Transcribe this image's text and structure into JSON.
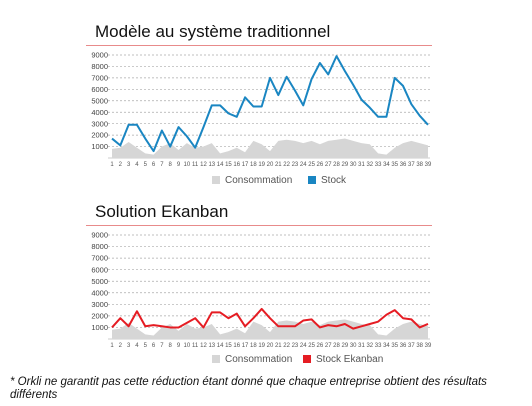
{
  "colors": {
    "stock": "#1a86c2",
    "ekanban": "#e51c23",
    "consommation": "#d6d6d6",
    "rule": "#e88b8b",
    "grid": "#aaaaaa"
  },
  "chart_data": [
    {
      "type": "line",
      "title": "Modèle au système traditionnel",
      "categories": [
        "1",
        "2",
        "3",
        "4",
        "5",
        "6",
        "7",
        "8",
        "9",
        "10",
        "11",
        "12",
        "13",
        "14",
        "15",
        "16",
        "17",
        "18",
        "19",
        "20",
        "21",
        "22",
        "23",
        "24",
        "25",
        "26",
        "27",
        "28",
        "29",
        "30",
        "31",
        "32",
        "33",
        "34",
        "35",
        "36",
        "37",
        "38",
        "39"
      ],
      "ylim": [
        0,
        9000
      ],
      "yticks": [
        1000,
        2000,
        3000,
        4000,
        5000,
        6000,
        7000,
        8000,
        9000
      ],
      "grid": true,
      "legend": "bottom",
      "series": [
        {
          "name": "Consommation",
          "kind": "area",
          "color": "#d6d6d6",
          "values": [
            800,
            900,
            1400,
            900,
            400,
            300,
            1000,
            1300,
            700,
            1300,
            900,
            1000,
            1300,
            400,
            600,
            900,
            500,
            1500,
            1200,
            600,
            1500,
            1600,
            1500,
            1300,
            1500,
            1200,
            1500,
            1600,
            1700,
            1500,
            1300,
            1200,
            400,
            300,
            900,
            1300,
            1500,
            1300,
            1100
          ]
        },
        {
          "name": "Stock",
          "kind": "line",
          "color": "#1a86c2",
          "values": [
            1700,
            1100,
            2900,
            2900,
            1700,
            600,
            2400,
            1000,
            2700,
            1900,
            900,
            2700,
            4600,
            4600,
            3900,
            3600,
            5300,
            4500,
            4500,
            7000,
            5500,
            7100,
            5900,
            4600,
            6900,
            8300,
            7300,
            8900,
            7600,
            6400,
            5100,
            4400,
            3600,
            3600,
            7000,
            6300,
            4700,
            3700,
            2900
          ]
        }
      ]
    },
    {
      "type": "line",
      "title": "Solution Ekanban",
      "categories": [
        "1",
        "2",
        "3",
        "4",
        "5",
        "6",
        "7",
        "8",
        "9",
        "10",
        "11",
        "12",
        "13",
        "14",
        "15",
        "16",
        "17",
        "18",
        "19",
        "20",
        "21",
        "22",
        "23",
        "24",
        "25",
        "26",
        "27",
        "28",
        "29",
        "30",
        "31",
        "32",
        "33",
        "34",
        "35",
        "36",
        "37",
        "38",
        "39"
      ],
      "ylim": [
        0,
        9000
      ],
      "yticks": [
        1000,
        2000,
        3000,
        4000,
        5000,
        6000,
        7000,
        8000,
        9000
      ],
      "grid": true,
      "legend": "bottom",
      "series": [
        {
          "name": "Consommation",
          "kind": "area",
          "color": "#d6d6d6",
          "values": [
            800,
            900,
            1400,
            900,
            400,
            300,
            1000,
            1300,
            700,
            1300,
            900,
            1000,
            1300,
            400,
            600,
            900,
            500,
            1500,
            1200,
            600,
            1500,
            1600,
            1500,
            1300,
            1500,
            1200,
            1500,
            1600,
            1700,
            1500,
            1300,
            1200,
            400,
            300,
            900,
            1300,
            1500,
            1300,
            1100
          ]
        },
        {
          "name": "Stock Ekanban",
          "kind": "line",
          "color": "#e51c23",
          "values": [
            1000,
            1800,
            1100,
            2400,
            1100,
            1200,
            1100,
            1000,
            1000,
            1400,
            1800,
            1000,
            2300,
            2300,
            1800,
            2200,
            1100,
            1800,
            2600,
            1800,
            1100,
            1100,
            1100,
            1600,
            1700,
            1000,
            1200,
            1100,
            1300,
            900,
            1100,
            1300,
            1500,
            2100,
            2500,
            1800,
            1700,
            1000,
            1300
          ]
        }
      ]
    }
  ],
  "note": "* Orkli ne garantit pas cette réduction étant donné que chaque entreprise obtient des résultats différents"
}
